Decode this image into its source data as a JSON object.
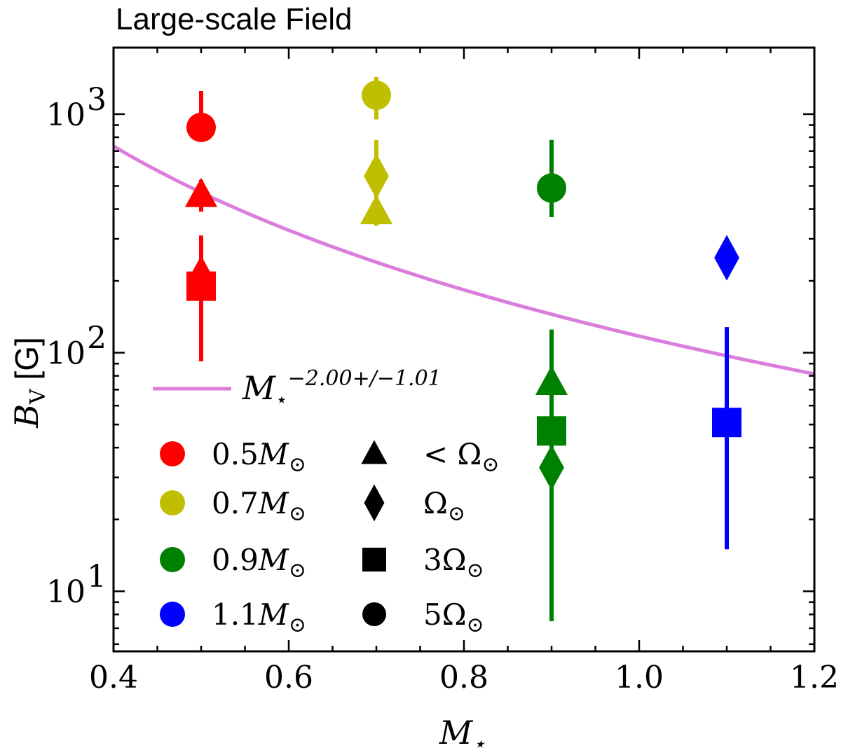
{
  "chart_data": {
    "type": "scatter",
    "title": "Large-scale Field",
    "xlabel": "M",
    "xlabel_sub": "⋆",
    "ylabel": "B",
    "ylabel_sub": "V",
    "ylabel_unit": "[G]",
    "xscale": "linear",
    "yscale": "log",
    "xlim": [
      0.4,
      1.2
    ],
    "ylim": [
      5.6,
      1900
    ],
    "xticks": [
      {
        "value": 0.4,
        "label": "0.4"
      },
      {
        "value": 0.6,
        "label": "0.6"
      },
      {
        "value": 0.8,
        "label": "0.8"
      },
      {
        "value": 1.0,
        "label": "1.0"
      },
      {
        "value": 1.2,
        "label": "1.2"
      }
    ],
    "yticks": [
      {
        "value": 10,
        "base": "10",
        "exp": "1"
      },
      {
        "value": 100,
        "base": "10",
        "exp": "2"
      },
      {
        "value": 1000,
        "base": "10",
        "exp": "3"
      }
    ],
    "colors": {
      "0.5": "#ff0000",
      "0.7": "#bfbf00",
      "0.9": "#008000",
      "1.1": "#0000ff",
      "fit": "#da7ddc"
    },
    "fit": {
      "amplitude": 97,
      "pivot": 1.1,
      "exponent": -2.0,
      "x_from": 0.4,
      "x_to": 1.2
    },
    "points": [
      {
        "mass": 0.5,
        "marker": "circle",
        "y": 880,
        "lo": null,
        "hi": 1250,
        "color_key": "0.5"
      },
      {
        "mass": 0.5,
        "marker": "triangle",
        "y": 460,
        "lo": 390,
        "hi": 530,
        "color_key": "0.5"
      },
      {
        "mass": 0.5,
        "marker": "diamond",
        "y": 205,
        "lo": 92,
        "hi": 310,
        "color_key": "0.5"
      },
      {
        "mass": 0.5,
        "marker": "square",
        "y": 190,
        "lo": 92,
        "hi": 250,
        "color_key": "0.5"
      },
      {
        "mass": 0.7,
        "marker": "circle",
        "y": 1200,
        "lo": 950,
        "hi": 1430,
        "color_key": "0.7"
      },
      {
        "mass": 0.7,
        "marker": "diamond",
        "y": 550,
        "lo": 380,
        "hi": 780,
        "color_key": "0.7"
      },
      {
        "mass": 0.7,
        "marker": "triangle",
        "y": 390,
        "lo": 340,
        "hi": 460,
        "color_key": "0.7"
      },
      {
        "mass": 0.9,
        "marker": "circle",
        "y": 490,
        "lo": 370,
        "hi": 780,
        "color_key": "0.9"
      },
      {
        "mass": 0.9,
        "marker": "triangle",
        "y": 75,
        "lo": 7.5,
        "hi": 125,
        "color_key": "0.9"
      },
      {
        "mass": 0.9,
        "marker": "square",
        "y": 47,
        "lo": 7.5,
        "hi": 125,
        "color_key": "0.9"
      },
      {
        "mass": 0.9,
        "marker": "diamond",
        "y": 33,
        "lo": 7.5,
        "hi": 125,
        "color_key": "0.9"
      },
      {
        "mass": 1.1,
        "marker": "diamond",
        "y": 250,
        "lo": null,
        "hi": null,
        "color_key": "1.1"
      },
      {
        "mass": 1.1,
        "marker": "square",
        "y": 51,
        "lo": 15,
        "hi": 128,
        "color_key": "1.1"
      }
    ],
    "legend": {
      "placement": "lower-left",
      "fit": {
        "base": "M",
        "sub": "⋆",
        "exp": "−2.00+/−1.01"
      },
      "masses": [
        {
          "value": "0.5",
          "symbol": "M",
          "sub": "⊙",
          "color_key": "0.5"
        },
        {
          "value": "0.7",
          "symbol": "M",
          "sub": "⊙",
          "color_key": "0.7"
        },
        {
          "value": "0.9",
          "symbol": "M",
          "sub": "⊙",
          "color_key": "0.9"
        },
        {
          "value": "1.1",
          "symbol": "M",
          "sub": "⊙",
          "color_key": "1.1"
        }
      ],
      "rotations": [
        {
          "marker": "triangle",
          "prefix": "< ",
          "symbol": "Ω",
          "sub": "⊙"
        },
        {
          "marker": "diamond",
          "prefix": "",
          "symbol": "Ω",
          "sub": "⊙"
        },
        {
          "marker": "square",
          "prefix": "3",
          "symbol": "Ω",
          "sub": "⊙"
        },
        {
          "marker": "circle",
          "prefix": "5",
          "symbol": "Ω",
          "sub": "⊙"
        }
      ]
    }
  }
}
